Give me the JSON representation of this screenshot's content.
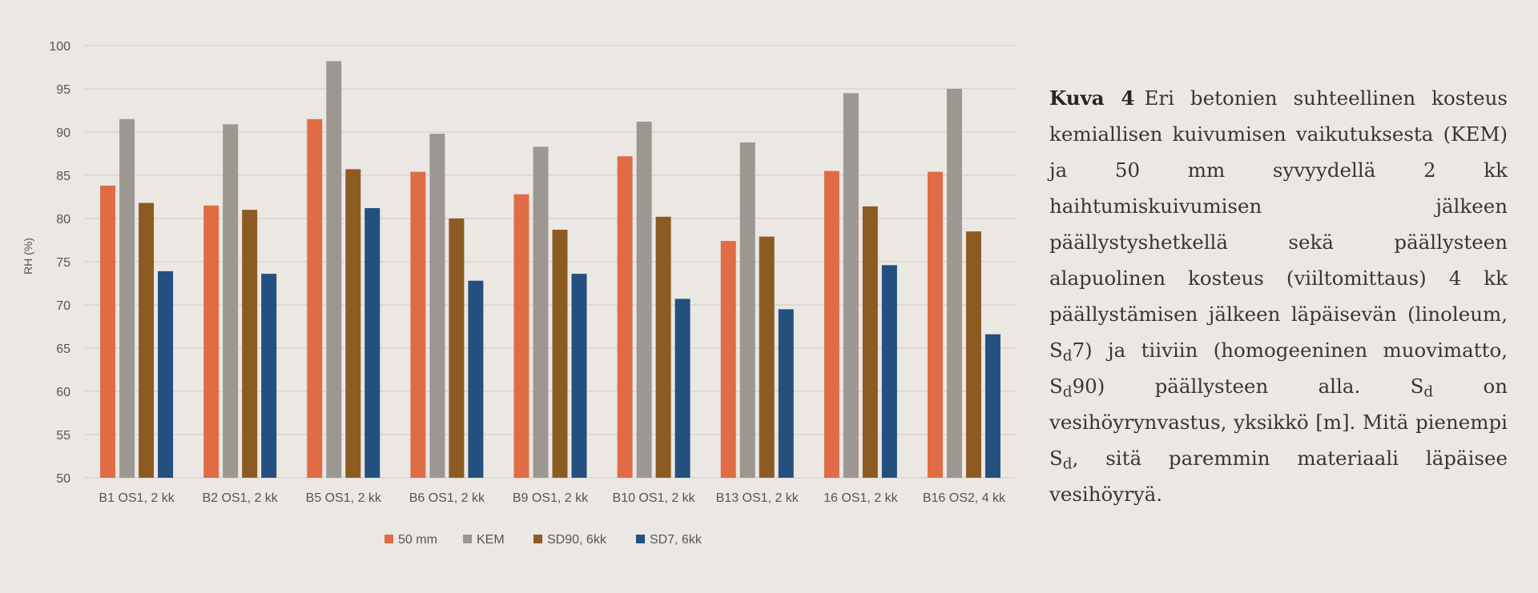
{
  "chart_data": {
    "type": "bar",
    "title": "",
    "xlabel": "",
    "ylabel": "RH (%)",
    "ylim": [
      50,
      100
    ],
    "yticks": [
      50,
      55,
      60,
      65,
      70,
      75,
      80,
      85,
      90,
      95,
      100
    ],
    "grid": true,
    "legend_position": "bottom",
    "categories": [
      "B1 OS1, 2 kk",
      "B2 OS1, 2 kk",
      "B5 OS1, 2 kk",
      "B6 OS1, 2 kk",
      "B9 OS1, 2 kk",
      "B10 OS1, 2 kk",
      "B13 OS1, 2 kk",
      "16 OS1, 2 kk",
      "B16 OS2, 4 kk"
    ],
    "series": [
      {
        "name": "50 mm",
        "color": "#e06c45",
        "values": [
          83.8,
          81.5,
          91.5,
          85.4,
          82.8,
          87.2,
          77.4,
          85.5,
          85.4
        ]
      },
      {
        "name": "KEM",
        "color": "#9c9791",
        "values": [
          91.5,
          90.9,
          98.2,
          89.8,
          88.3,
          91.2,
          88.8,
          94.5,
          95.0
        ]
      },
      {
        "name": "SD90, 6kk",
        "color": "#8c5b22",
        "values": [
          81.8,
          81.0,
          85.7,
          80.0,
          78.7,
          80.2,
          77.9,
          81.4,
          78.5
        ]
      },
      {
        "name": "SD7, 6kk",
        "color": "#23507e",
        "values": [
          73.9,
          73.6,
          81.2,
          72.8,
          73.6,
          70.7,
          69.5,
          74.6,
          66.6
        ]
      }
    ]
  },
  "caption": {
    "label": "Kuva 4",
    "text_1": "Eri betonien suhteellinen kosteus kemiallisen kuivumisen vaikutuksesta (KEM) ja 50 mm syvyydellä 2 kk haihtumiskuivumisen jälkeen päällystyshetkellä sekä päällysteen alapuolinen kosteus (viiltomittaus) 4 kk päällystämisen jälkeen läpäisevän (linoleum, ",
    "s1": "S",
    "d1": "d",
    "text_2": "7) ja tiiviin (homogeeninen muovimatto, ",
    "s2": "S",
    "d2": "d",
    "text_3": "90) päällysteen alla. ",
    "s3": "S",
    "d3": "d",
    "text_4": " on vesihöyrynvastus, yksikkö [m]. Mitä pienempi ",
    "s4": "S",
    "d4": "d",
    "text_5": ", sitä paremmin materiaali läpäisee vesihöyryä."
  }
}
